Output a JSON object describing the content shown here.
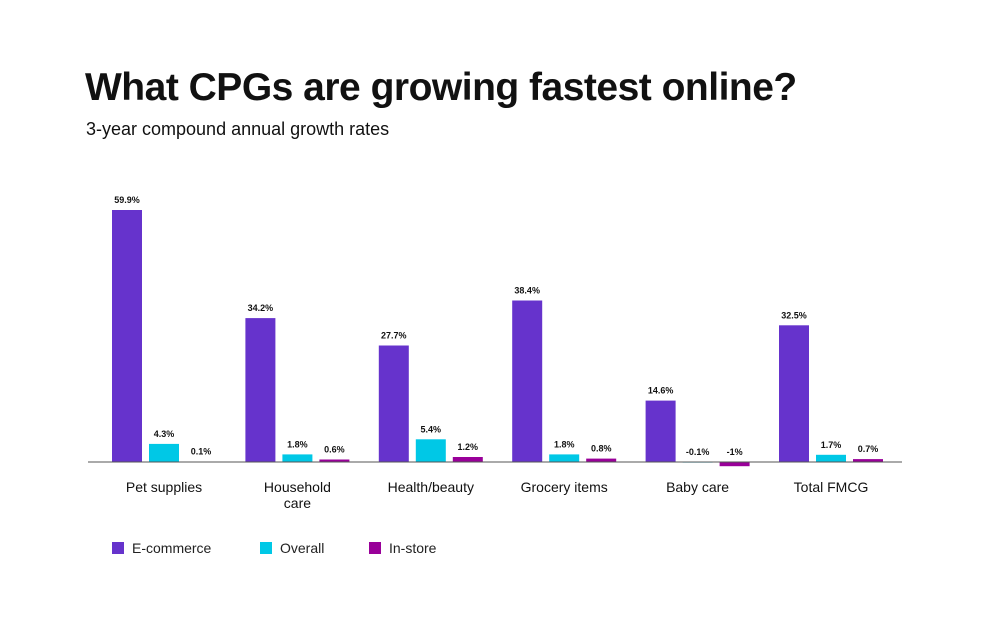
{
  "title": "What CPGs are growing fastest online?",
  "subtitle": "3-year compound annual growth rates",
  "chart_data": {
    "type": "bar",
    "title": "What CPGs are growing fastest online?",
    "subtitle": "3-year compound annual growth rates",
    "categories": [
      [
        "Pet supplies"
      ],
      [
        "Household",
        "care"
      ],
      [
        "Health/beauty"
      ],
      [
        "Grocery items"
      ],
      [
        "Baby care"
      ],
      [
        "Total FMCG"
      ]
    ],
    "series": [
      {
        "name": "E-commerce",
        "color": "#6633cc",
        "values": [
          59.9,
          34.2,
          27.7,
          38.4,
          14.6,
          32.5
        ],
        "labels": [
          "59.9%",
          "34.2%",
          "27.7%",
          "38.4%",
          "14.6%",
          "32.5%"
        ]
      },
      {
        "name": "Overall",
        "color": "#00c8e6",
        "values": [
          4.3,
          1.8,
          5.4,
          1.8,
          -0.1,
          1.7
        ],
        "labels": [
          "4.3%",
          "1.8%",
          "5.4%",
          "1.8%",
          "-0.1%",
          "1.7%"
        ]
      },
      {
        "name": "In-store",
        "color": "#990099",
        "values": [
          0.1,
          0.6,
          1.2,
          0.8,
          -1,
          0.7
        ],
        "labels": [
          "0.1%",
          "0.6%",
          "1.2%",
          "0.8%",
          "-1%",
          "0.7%"
        ]
      }
    ],
    "grid": false,
    "legend_placement": "bottom-left"
  }
}
